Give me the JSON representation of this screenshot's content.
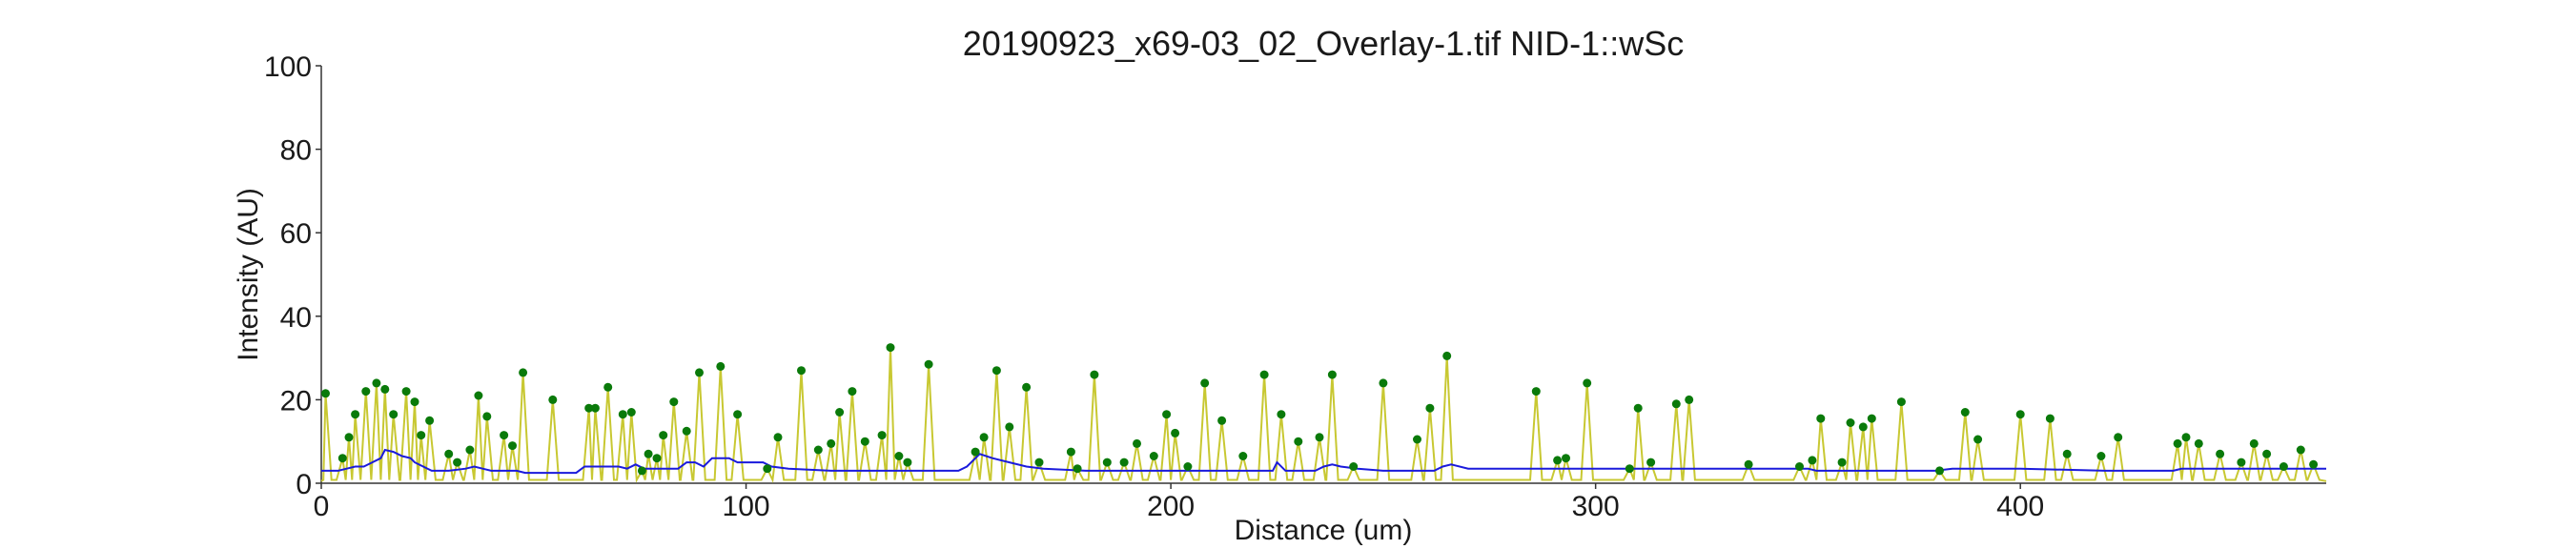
{
  "chart_data": {
    "type": "line",
    "title": "20190923_x69-03_02_Overlay-1.tif NID-1::wSc",
    "xlabel": "Distance (um)",
    "ylabel": "Intensity (AU)",
    "xlim": [
      0,
      472
    ],
    "ylim": [
      0,
      100
    ],
    "x_ticks": [
      0,
      100,
      200,
      300,
      400
    ],
    "y_ticks": [
      0,
      20,
      40,
      60,
      80,
      100
    ],
    "grid": false,
    "legend": "none",
    "colors": {
      "signal": "#c8c832",
      "baseline": "#1a1adc",
      "peaks": "#0a7a0a",
      "axis": "#333333"
    },
    "peaks": [
      {
        "x": 1,
        "y": 21.5
      },
      {
        "x": 5,
        "y": 6
      },
      {
        "x": 6.5,
        "y": 11
      },
      {
        "x": 8,
        "y": 16.5
      },
      {
        "x": 10.5,
        "y": 22
      },
      {
        "x": 13,
        "y": 24
      },
      {
        "x": 15,
        "y": 22.5
      },
      {
        "x": 17,
        "y": 16.5
      },
      {
        "x": 20,
        "y": 22
      },
      {
        "x": 22,
        "y": 19.5
      },
      {
        "x": 23.5,
        "y": 11.5
      },
      {
        "x": 25.5,
        "y": 15
      },
      {
        "x": 30,
        "y": 7
      },
      {
        "x": 32,
        "y": 5
      },
      {
        "x": 35,
        "y": 8
      },
      {
        "x": 37,
        "y": 21
      },
      {
        "x": 39,
        "y": 16
      },
      {
        "x": 43,
        "y": 11.5
      },
      {
        "x": 45,
        "y": 9
      },
      {
        "x": 47.5,
        "y": 26.5
      },
      {
        "x": 54.5,
        "y": 20
      },
      {
        "x": 63,
        "y": 18
      },
      {
        "x": 64.5,
        "y": 18
      },
      {
        "x": 67.5,
        "y": 23
      },
      {
        "x": 71,
        "y": 16.5
      },
      {
        "x": 73,
        "y": 17
      },
      {
        "x": 75.5,
        "y": 3
      },
      {
        "x": 77,
        "y": 7
      },
      {
        "x": 79,
        "y": 6
      },
      {
        "x": 80.5,
        "y": 11.5
      },
      {
        "x": 83,
        "y": 19.5
      },
      {
        "x": 86,
        "y": 12.5
      },
      {
        "x": 89,
        "y": 26.5
      },
      {
        "x": 94,
        "y": 28
      },
      {
        "x": 98,
        "y": 16.5
      },
      {
        "x": 105,
        "y": 3.5
      },
      {
        "x": 107.5,
        "y": 11
      },
      {
        "x": 113,
        "y": 27
      },
      {
        "x": 117,
        "y": 8
      },
      {
        "x": 120,
        "y": 9.5
      },
      {
        "x": 122,
        "y": 17
      },
      {
        "x": 125,
        "y": 22
      },
      {
        "x": 128,
        "y": 10
      },
      {
        "x": 132,
        "y": 11.5
      },
      {
        "x": 134,
        "y": 32.5
      },
      {
        "x": 136,
        "y": 6.5
      },
      {
        "x": 138,
        "y": 5
      },
      {
        "x": 143,
        "y": 28.5
      },
      {
        "x": 154,
        "y": 7.5
      },
      {
        "x": 156,
        "y": 11
      },
      {
        "x": 159,
        "y": 27
      },
      {
        "x": 162,
        "y": 13.5
      },
      {
        "x": 166,
        "y": 23
      },
      {
        "x": 169,
        "y": 5
      },
      {
        "x": 176.5,
        "y": 7.5
      },
      {
        "x": 178,
        "y": 3.5
      },
      {
        "x": 182,
        "y": 26
      },
      {
        "x": 185,
        "y": 5
      },
      {
        "x": 189,
        "y": 5
      },
      {
        "x": 192,
        "y": 9.5
      },
      {
        "x": 196,
        "y": 6.5
      },
      {
        "x": 199,
        "y": 16.5
      },
      {
        "x": 201,
        "y": 12
      },
      {
        "x": 204,
        "y": 4
      },
      {
        "x": 208,
        "y": 24
      },
      {
        "x": 212,
        "y": 15
      },
      {
        "x": 217,
        "y": 6.5
      },
      {
        "x": 222,
        "y": 26
      },
      {
        "x": 226,
        "y": 16.5
      },
      {
        "x": 230,
        "y": 10
      },
      {
        "x": 235,
        "y": 11
      },
      {
        "x": 238,
        "y": 26
      },
      {
        "x": 243,
        "y": 4
      },
      {
        "x": 250,
        "y": 24
      },
      {
        "x": 258,
        "y": 10.5
      },
      {
        "x": 261,
        "y": 18
      },
      {
        "x": 265,
        "y": 30.5
      },
      {
        "x": 286,
        "y": 22
      },
      {
        "x": 291,
        "y": 5.5
      },
      {
        "x": 293,
        "y": 6
      },
      {
        "x": 298,
        "y": 24
      },
      {
        "x": 308,
        "y": 3.5
      },
      {
        "x": 310,
        "y": 18
      },
      {
        "x": 313,
        "y": 5
      },
      {
        "x": 319,
        "y": 19
      },
      {
        "x": 322,
        "y": 20
      },
      {
        "x": 336,
        "y": 4.5
      },
      {
        "x": 348,
        "y": 4
      },
      {
        "x": 351,
        "y": 5.5
      },
      {
        "x": 353,
        "y": 15.5
      },
      {
        "x": 358,
        "y": 5
      },
      {
        "x": 360,
        "y": 14.5
      },
      {
        "x": 363,
        "y": 13.5
      },
      {
        "x": 365,
        "y": 15.5
      },
      {
        "x": 372,
        "y": 19.5
      },
      {
        "x": 381,
        "y": 3
      },
      {
        "x": 387,
        "y": 17
      },
      {
        "x": 390,
        "y": 10.5
      },
      {
        "x": 400,
        "y": 16.5
      },
      {
        "x": 407,
        "y": 15.5
      },
      {
        "x": 411,
        "y": 7
      },
      {
        "x": 419,
        "y": 6.5
      },
      {
        "x": 423,
        "y": 11
      },
      {
        "x": 437,
        "y": 9.5
      },
      {
        "x": 439,
        "y": 11
      },
      {
        "x": 442,
        "y": 9.5
      },
      {
        "x": 447,
        "y": 7
      },
      {
        "x": 452,
        "y": 5
      },
      {
        "x": 455,
        "y": 9.5
      },
      {
        "x": 458,
        "y": 7
      },
      {
        "x": 462,
        "y": 4
      },
      {
        "x": 466,
        "y": 8
      },
      {
        "x": 469,
        "y": 4.5
      }
    ],
    "baseline": [
      [
        0,
        3
      ],
      [
        4,
        3
      ],
      [
        6,
        3.5
      ],
      [
        8,
        4
      ],
      [
        10,
        4
      ],
      [
        12,
        5
      ],
      [
        14,
        6
      ],
      [
        15,
        8
      ],
      [
        17,
        7.5
      ],
      [
        19,
        6.5
      ],
      [
        21,
        6
      ],
      [
        22,
        5
      ],
      [
        24,
        4
      ],
      [
        26,
        3
      ],
      [
        30,
        3
      ],
      [
        34,
        3.5
      ],
      [
        36,
        4
      ],
      [
        38,
        3.5
      ],
      [
        40,
        3
      ],
      [
        46,
        3
      ],
      [
        48,
        2.5
      ],
      [
        60,
        2.5
      ],
      [
        62,
        4
      ],
      [
        70,
        4
      ],
      [
        72,
        3.5
      ],
      [
        74,
        4.5
      ],
      [
        76,
        3.5
      ],
      [
        84,
        3.5
      ],
      [
        86,
        5
      ],
      [
        88,
        5
      ],
      [
        90,
        4
      ],
      [
        92,
        6
      ],
      [
        96,
        6
      ],
      [
        98,
        5
      ],
      [
        104,
        5
      ],
      [
        106,
        4
      ],
      [
        110,
        3.5
      ],
      [
        120,
        3
      ],
      [
        150,
        3
      ],
      [
        152,
        4
      ],
      [
        155,
        7
      ],
      [
        158,
        6
      ],
      [
        162,
        5
      ],
      [
        166,
        4
      ],
      [
        170,
        3.5
      ],
      [
        180,
        3
      ],
      [
        200,
        3
      ],
      [
        215,
        3
      ],
      [
        224,
        3
      ],
      [
        225,
        5
      ],
      [
        227,
        3
      ],
      [
        234,
        3
      ],
      [
        236,
        4
      ],
      [
        238,
        4.5
      ],
      [
        240,
        4
      ],
      [
        244,
        3.5
      ],
      [
        250,
        3
      ],
      [
        262,
        3
      ],
      [
        264,
        4
      ],
      [
        266,
        4.5
      ],
      [
        270,
        3.5
      ],
      [
        280,
        3.5
      ],
      [
        300,
        3.5
      ],
      [
        320,
        3.5
      ],
      [
        340,
        3.5
      ],
      [
        350,
        3.5
      ],
      [
        352,
        3
      ],
      [
        380,
        3
      ],
      [
        384,
        3.5
      ],
      [
        400,
        3.5
      ],
      [
        420,
        3
      ],
      [
        436,
        3
      ],
      [
        438,
        3.5
      ],
      [
        450,
        3.5
      ],
      [
        460,
        3.5
      ],
      [
        472,
        3.5
      ]
    ]
  }
}
